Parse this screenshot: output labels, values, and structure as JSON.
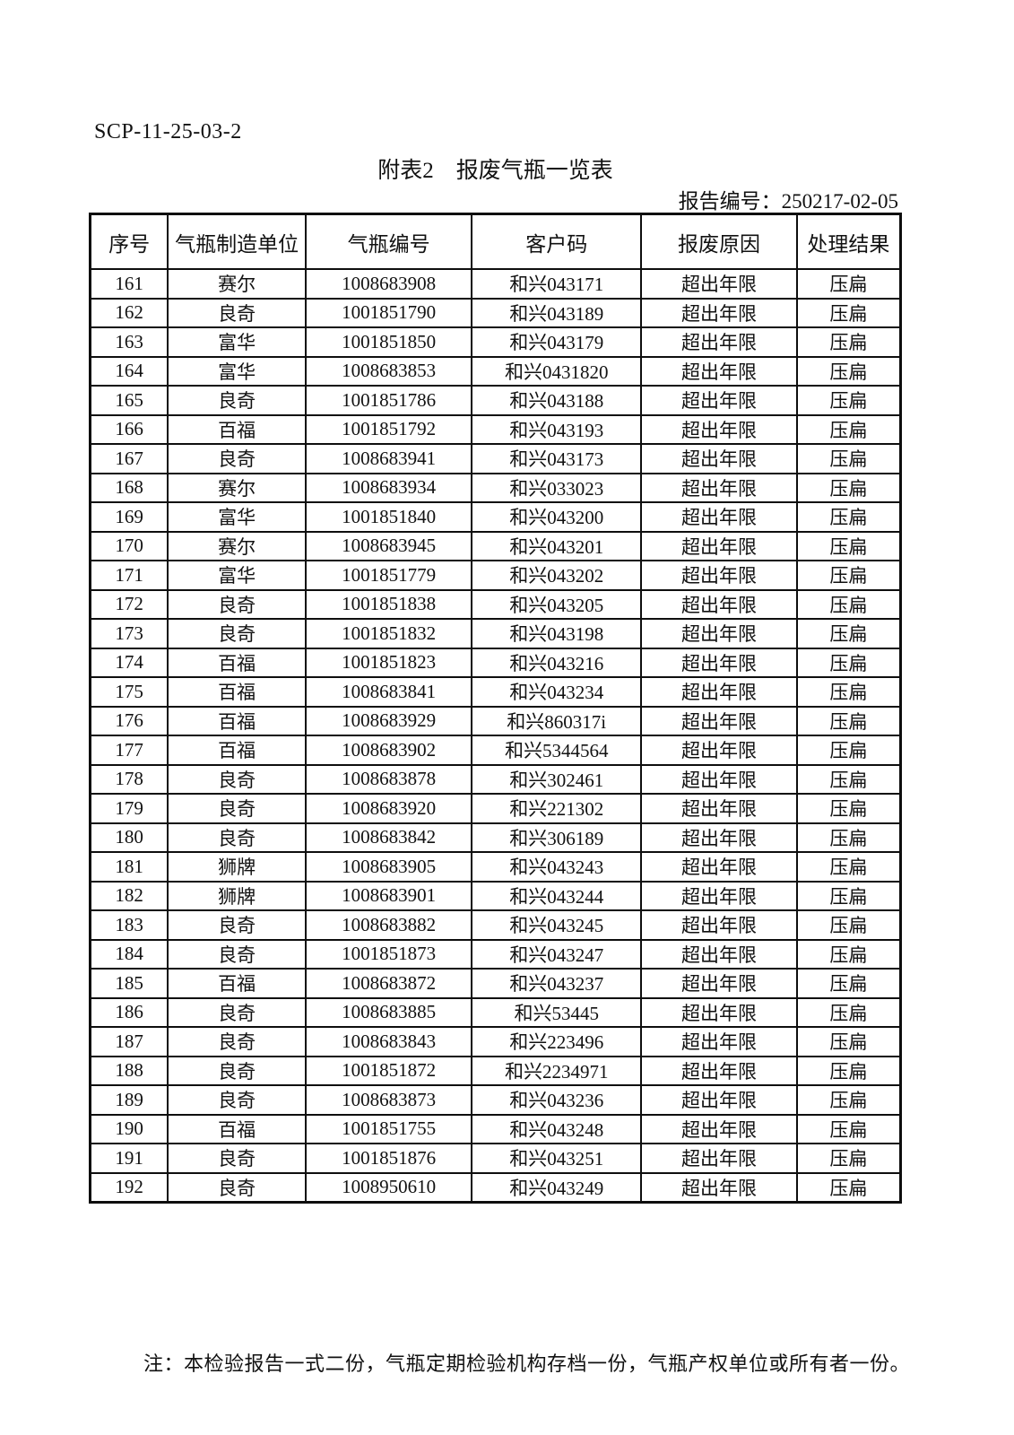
{
  "page": {
    "doc_code": "SCP-11-25-03-2",
    "title": "附表2　报废气瓶一览表",
    "report_no_line": "报告编号：250217-02-05",
    "note": "注：本检验报告一式二份，气瓶定期检验机构存档一份，气瓶产权单位或所有者一份。"
  },
  "table": {
    "headers": [
      "序号",
      "气瓶制造单位",
      "气瓶编号",
      "客户码",
      "报废原因",
      "处理结果"
    ],
    "rows": [
      [
        "161",
        "赛尔",
        "1008683908",
        "和兴043171",
        "超出年限",
        "压扁"
      ],
      [
        "162",
        "良奇",
        "1001851790",
        "和兴043189",
        "超出年限",
        "压扁"
      ],
      [
        "163",
        "富华",
        "1001851850",
        "和兴043179",
        "超出年限",
        "压扁"
      ],
      [
        "164",
        "富华",
        "1008683853",
        "和兴0431820",
        "超出年限",
        "压扁"
      ],
      [
        "165",
        "良奇",
        "1001851786",
        "和兴043188",
        "超出年限",
        "压扁"
      ],
      [
        "166",
        "百福",
        "1001851792",
        "和兴043193",
        "超出年限",
        "压扁"
      ],
      [
        "167",
        "良奇",
        "1008683941",
        "和兴043173",
        "超出年限",
        "压扁"
      ],
      [
        "168",
        "赛尔",
        "1008683934",
        "和兴033023",
        "超出年限",
        "压扁"
      ],
      [
        "169",
        "富华",
        "1001851840",
        "和兴043200",
        "超出年限",
        "压扁"
      ],
      [
        "170",
        "赛尔",
        "1008683945",
        "和兴043201",
        "超出年限",
        "压扁"
      ],
      [
        "171",
        "富华",
        "1001851779",
        "和兴043202",
        "超出年限",
        "压扁"
      ],
      [
        "172",
        "良奇",
        "1001851838",
        "和兴043205",
        "超出年限",
        "压扁"
      ],
      [
        "173",
        "良奇",
        "1001851832",
        "和兴043198",
        "超出年限",
        "压扁"
      ],
      [
        "174",
        "百福",
        "1001851823",
        "和兴043216",
        "超出年限",
        "压扁"
      ],
      [
        "175",
        "百福",
        "1008683841",
        "和兴043234",
        "超出年限",
        "压扁"
      ],
      [
        "176",
        "百福",
        "1008683929",
        "和兴860317i",
        "超出年限",
        "压扁"
      ],
      [
        "177",
        "百福",
        "1008683902",
        "和兴5344564",
        "超出年限",
        "压扁"
      ],
      [
        "178",
        "良奇",
        "1008683878",
        "和兴302461",
        "超出年限",
        "压扁"
      ],
      [
        "179",
        "良奇",
        "1008683920",
        "和兴221302",
        "超出年限",
        "压扁"
      ],
      [
        "180",
        "良奇",
        "1008683842",
        "和兴306189",
        "超出年限",
        "压扁"
      ],
      [
        "181",
        "狮牌",
        "1008683905",
        "和兴043243",
        "超出年限",
        "压扁"
      ],
      [
        "182",
        "狮牌",
        "1008683901",
        "和兴043244",
        "超出年限",
        "压扁"
      ],
      [
        "183",
        "良奇",
        "1008683882",
        "和兴043245",
        "超出年限",
        "压扁"
      ],
      [
        "184",
        "良奇",
        "1001851873",
        "和兴043247",
        "超出年限",
        "压扁"
      ],
      [
        "185",
        "百福",
        "1008683872",
        "和兴043237",
        "超出年限",
        "压扁"
      ],
      [
        "186",
        "良奇",
        "1008683885",
        "和兴53445",
        "超出年限",
        "压扁"
      ],
      [
        "187",
        "良奇",
        "1008683843",
        "和兴223496",
        "超出年限",
        "压扁"
      ],
      [
        "188",
        "良奇",
        "1001851872",
        "和兴2234971",
        "超出年限",
        "压扁"
      ],
      [
        "189",
        "良奇",
        "1008683873",
        "和兴043236",
        "超出年限",
        "压扁"
      ],
      [
        "190",
        "百福",
        "1001851755",
        "和兴043248",
        "超出年限",
        "压扁"
      ],
      [
        "191",
        "良奇",
        "1001851876",
        "和兴043251",
        "超出年限",
        "压扁"
      ],
      [
        "192",
        "良奇",
        "1008950610",
        "和兴043249",
        "超出年限",
        "压扁"
      ]
    ]
  }
}
